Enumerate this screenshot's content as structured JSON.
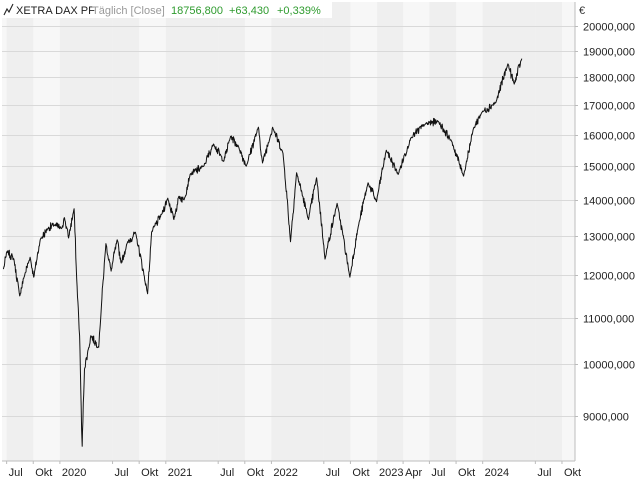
{
  "header": {
    "symbol": "XETRA DAX PF",
    "mode": "Täglich [Close]",
    "last_value": "18756,800",
    "change_abs": "+63,430",
    "change_pct": "+0,339%",
    "change_color": "#2e9b2e"
  },
  "y_axis": {
    "unit": "€"
  },
  "chart_data": {
    "type": "line",
    "title": "",
    "xlabel": "",
    "ylabel": "",
    "x_type": "date",
    "y_scale": "log",
    "ylim": [
      8200,
      21000
    ],
    "xlim": [
      "2019-06-15",
      "2024-11-15"
    ],
    "grid": true,
    "legend": "none",
    "y_ticks": [
      {
        "value": 9000,
        "label": "9000,000"
      },
      {
        "value": 10000,
        "label": "10000,000"
      },
      {
        "value": 11000,
        "label": "11000,000"
      },
      {
        "value": 12000,
        "label": "12000,000"
      },
      {
        "value": 13000,
        "label": "13000,000"
      },
      {
        "value": 14000,
        "label": "14000,000"
      },
      {
        "value": 15000,
        "label": "15000,000"
      },
      {
        "value": 16000,
        "label": "16000,000"
      },
      {
        "value": 17000,
        "label": "17000,000"
      },
      {
        "value": 18000,
        "label": "18000,000"
      },
      {
        "value": 19000,
        "label": "19000,000"
      },
      {
        "value": 20000,
        "label": "20000,000"
      }
    ],
    "x_ticks": [
      {
        "date": "2019-07-01",
        "label": "Jul"
      },
      {
        "date": "2019-10-01",
        "label": "Okt"
      },
      {
        "date": "2020-01-01",
        "label": "2020"
      },
      {
        "date": "2020-07-01",
        "label": "Jul"
      },
      {
        "date": "2020-10-01",
        "label": "Okt"
      },
      {
        "date": "2021-01-01",
        "label": "2021"
      },
      {
        "date": "2021-07-01",
        "label": "Jul"
      },
      {
        "date": "2021-10-01",
        "label": "Okt"
      },
      {
        "date": "2022-01-01",
        "label": "2022"
      },
      {
        "date": "2022-07-01",
        "label": "Jul"
      },
      {
        "date": "2022-10-01",
        "label": "Okt"
      },
      {
        "date": "2023-01-01",
        "label": "2023"
      },
      {
        "date": "2023-04-01",
        "label": "Apr"
      },
      {
        "date": "2023-07-01",
        "label": "Jul"
      },
      {
        "date": "2023-10-01",
        "label": "Okt"
      },
      {
        "date": "2024-01-01",
        "label": "2024"
      },
      {
        "date": "2024-07-01",
        "label": "Jul"
      },
      {
        "date": "2024-10-01",
        "label": "Okt"
      }
    ],
    "series": [
      {
        "color": "#111111",
        "points": [
          [
            "2019-06-20",
            12150
          ],
          [
            "2019-07-03",
            12600
          ],
          [
            "2019-07-26",
            12400
          ],
          [
            "2019-08-15",
            11500
          ],
          [
            "2019-08-30",
            11950
          ],
          [
            "2019-09-20",
            12450
          ],
          [
            "2019-10-03",
            11950
          ],
          [
            "2019-10-25",
            12900
          ],
          [
            "2019-11-20",
            13200
          ],
          [
            "2019-12-13",
            13300
          ],
          [
            "2020-01-06",
            13200
          ],
          [
            "2020-01-17",
            13500
          ],
          [
            "2020-01-31",
            12950
          ],
          [
            "2020-02-19",
            13750
          ],
          [
            "2020-02-28",
            11900
          ],
          [
            "2020-03-09",
            10600
          ],
          [
            "2020-03-16",
            8750
          ],
          [
            "2020-03-18",
            8450
          ],
          [
            "2020-03-26",
            9900
          ],
          [
            "2020-04-08",
            10300
          ],
          [
            "2020-04-17",
            10600
          ],
          [
            "2020-05-14",
            10350
          ],
          [
            "2020-06-08",
            12800
          ],
          [
            "2020-06-26",
            12100
          ],
          [
            "2020-07-17",
            12900
          ],
          [
            "2020-07-31",
            12300
          ],
          [
            "2020-08-20",
            12800
          ],
          [
            "2020-09-18",
            13100
          ],
          [
            "2020-10-30",
            11550
          ],
          [
            "2020-11-13",
            13100
          ],
          [
            "2020-12-18",
            13600
          ],
          [
            "2021-01-08",
            14050
          ],
          [
            "2021-01-29",
            13450
          ],
          [
            "2021-02-15",
            14100
          ],
          [
            "2021-03-05",
            14000
          ],
          [
            "2021-03-26",
            14750
          ],
          [
            "2021-05-12",
            15000
          ],
          [
            "2021-06-15",
            15700
          ],
          [
            "2021-07-20",
            15150
          ],
          [
            "2021-08-13",
            15950
          ],
          [
            "2021-09-10",
            15600
          ],
          [
            "2021-10-06",
            15000
          ],
          [
            "2021-11-17",
            16250
          ],
          [
            "2021-12-01",
            15100
          ],
          [
            "2021-12-28",
            15950
          ],
          [
            "2022-01-05",
            16250
          ],
          [
            "2022-02-10",
            15400
          ],
          [
            "2022-03-08",
            12850
          ],
          [
            "2022-03-29",
            14800
          ],
          [
            "2022-05-09",
            13450
          ],
          [
            "2022-06-06",
            14650
          ],
          [
            "2022-07-05",
            12400
          ],
          [
            "2022-08-16",
            13900
          ],
          [
            "2022-09-29",
            11950
          ],
          [
            "2022-10-28",
            13250
          ],
          [
            "2022-12-01",
            14500
          ],
          [
            "2022-12-30",
            13950
          ],
          [
            "2023-02-02",
            15500
          ],
          [
            "2023-03-15",
            14750
          ],
          [
            "2023-04-28",
            15900
          ],
          [
            "2023-06-16",
            16350
          ],
          [
            "2023-07-31",
            16450
          ],
          [
            "2023-09-15",
            15800
          ],
          [
            "2023-10-27",
            14700
          ],
          [
            "2023-11-30",
            16200
          ],
          [
            "2023-12-29",
            16750
          ],
          [
            "2024-02-16",
            17100
          ],
          [
            "2024-03-28",
            18500
          ],
          [
            "2024-04-19",
            17750
          ],
          [
            "2024-05-15",
            18700
          ]
        ]
      }
    ]
  }
}
